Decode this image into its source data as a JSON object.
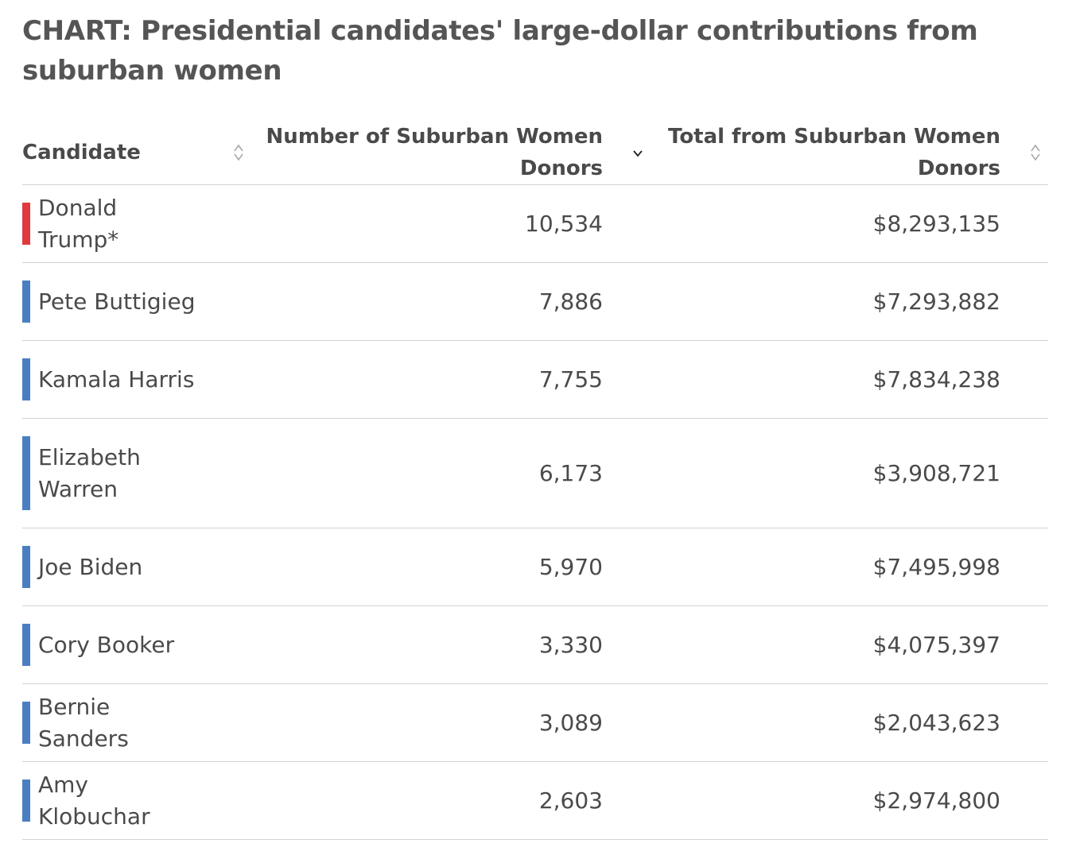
{
  "title": "CHART: Presidential candidates' large-dollar contributions from suburban women",
  "colors": {
    "republican": "#e03a3e",
    "democrat": "#4a7ec1",
    "sort_icon": "#a8a8a8",
    "sort_active": "#222222"
  },
  "chart_data": {
    "type": "table",
    "sorted_by": "Number of Suburban Women Donors",
    "sort_direction": "descending",
    "columns": [
      "Candidate",
      "Number of Suburban Women Donors",
      "Total from Suburban Women Donors"
    ],
    "rows": [
      {
        "candidate": "Donald Trump*",
        "party": "republican",
        "donors": "10,534",
        "total": "$8,293,135"
      },
      {
        "candidate": "Pete Buttigieg",
        "party": "democrat",
        "donors": "7,886",
        "total": "$7,293,882"
      },
      {
        "candidate": "Kamala Harris",
        "party": "democrat",
        "donors": "7,755",
        "total": "$7,834,238"
      },
      {
        "candidate": "Elizabeth Warren",
        "party": "democrat",
        "donors": "6,173",
        "total": "$3,908,721"
      },
      {
        "candidate": "Joe Biden",
        "party": "democrat",
        "donors": "5,970",
        "total": "$7,495,998"
      },
      {
        "candidate": "Cory Booker",
        "party": "democrat",
        "donors": "3,330",
        "total": "$4,075,397"
      },
      {
        "candidate": "Bernie Sanders",
        "party": "democrat",
        "donors": "3,089",
        "total": "$2,043,623"
      },
      {
        "candidate": "Amy Klobuchar",
        "party": "democrat",
        "donors": "2,603",
        "total": "$2,974,800"
      }
    ]
  }
}
